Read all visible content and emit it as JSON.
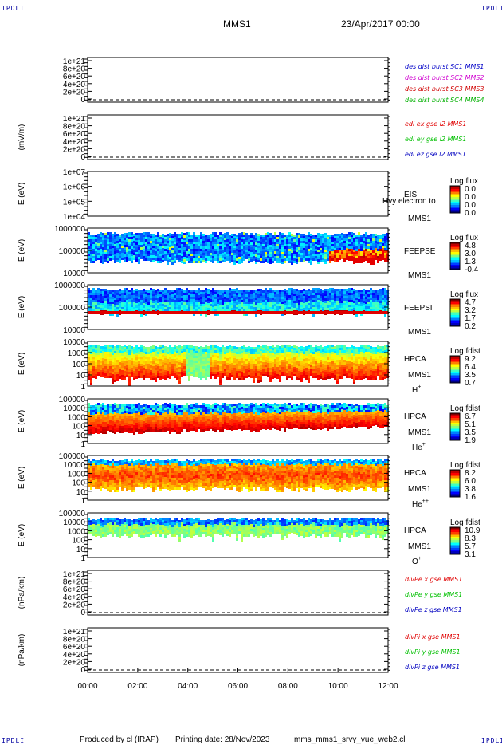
{
  "corners": {
    "tl": "IPDLI",
    "tr": "IPDLI",
    "bl": "IPDLI",
    "br": "IPDLI"
  },
  "header": {
    "mission": "MMS1",
    "date": "23/Apr/2017 00:00"
  },
  "footer": {
    "produced": "Produced by cl (IRAP)",
    "printing": "Printing date: 28/Nov/2023",
    "script": "mms_mms1_srvy_vue_web2.cl"
  },
  "colors": {
    "ax1": "#0000c8",
    "ax2": "#d000d0",
    "ax3": "#d00000",
    "ax4": "#00b000",
    "red": "#e00000",
    "green": "#00c000",
    "blue": "#0000c0"
  },
  "chart_data": [
    {
      "type": "line",
      "ylabel": "",
      "yticks": [
        "1e+21",
        "8e+20",
        "6e+20",
        "4e+20",
        "2e+20",
        "0"
      ],
      "legend": [
        "des dist burst SC1 MMS1",
        "des dist burst SC2 MMS2",
        "des dist burst SC3 MMS3",
        "des dist burst SC4 MMS4"
      ],
      "legend_colors": [
        "ax1",
        "ax2",
        "ax3",
        "ax4"
      ],
      "dashed_zero": true,
      "series": []
    },
    {
      "type": "line",
      "ylabel": "(mV/m)",
      "yticks": [
        "1e+21",
        "8e+20",
        "6e+20",
        "4e+20",
        "2e+20",
        "0"
      ],
      "legend": [
        "edi ex gse l2 MMS1",
        "edi ey gse l2 MMS1",
        "edi ez gse l2 MMS1"
      ],
      "legend_colors": [
        "red",
        "green",
        "blue"
      ],
      "dashed_zero": true,
      "series": []
    },
    {
      "type": "heatmap",
      "ylabel": "E (eV)",
      "yticks": [
        "1e+07",
        "1e+06",
        "1e+05",
        "1e+04"
      ],
      "right_label": "EIS",
      "sc_label": "MMS1",
      "overflow_label": "Hvy electron to",
      "colorbar": {
        "title": "Log flux",
        "ticks": [
          "0.0",
          "0.0",
          "0.0",
          "0.0"
        ]
      },
      "profile": null
    },
    {
      "type": "heatmap",
      "ylabel": "E (eV)",
      "yticks": [
        "1000000",
        "100000",
        "10000"
      ],
      "right_label": "FEEPSE",
      "sc_label": "MMS1",
      "colorbar": {
        "title": "Log flux",
        "ticks": [
          "4.8",
          "3.0",
          "1.3",
          "-0.4"
        ]
      },
      "profile": "feepse"
    },
    {
      "type": "heatmap",
      "ylabel": "E (eV)",
      "yticks": [
        "1000000",
        "100000",
        "10000"
      ],
      "right_label": "FEEPSI",
      "sc_label": "MMS1",
      "colorbar": {
        "title": "Log flux",
        "ticks": [
          "4.7",
          "3.2",
          "1.7",
          "0.2"
        ]
      },
      "profile": "feepsi"
    },
    {
      "type": "heatmap",
      "ylabel": "E (eV)",
      "yticks": [
        "10000",
        "1000",
        "100",
        "10",
        "1"
      ],
      "right_label": "HPCA",
      "sc_label": "MMS1",
      "species": "H",
      "species_sup": "+",
      "colorbar": {
        "title": "Log fdist",
        "ticks": [
          "9.2",
          "6.4",
          "3.5",
          "0.7"
        ]
      },
      "profile": "hplus"
    },
    {
      "type": "heatmap",
      "ylabel": "E (eV)",
      "yticks": [
        "100000",
        "10000",
        "1000",
        "100",
        "10",
        "1"
      ],
      "right_label": "HPCA",
      "sc_label": "MMS1",
      "species": "He",
      "species_sup": "+",
      "colorbar": {
        "title": "Log fdist",
        "ticks": [
          "6.7",
          "5.1",
          "3.5",
          "1.9"
        ]
      },
      "profile": "heplus"
    },
    {
      "type": "heatmap",
      "ylabel": "E (eV)",
      "yticks": [
        "100000",
        "10000",
        "1000",
        "100",
        "10",
        "1"
      ],
      "right_label": "HPCA",
      "sc_label": "MMS1",
      "species": "He",
      "species_sup": "++",
      "colorbar": {
        "title": "Log fdist",
        "ticks": [
          "8.2",
          "6.0",
          "3.8",
          "1.6"
        ]
      },
      "profile": "hepp"
    },
    {
      "type": "heatmap",
      "ylabel": "E (eV)",
      "yticks": [
        "100000",
        "10000",
        "1000",
        "100",
        "10",
        "1"
      ],
      "right_label": "HPCA",
      "sc_label": "MMS1",
      "species": "O",
      "species_sup": "+",
      "colorbar": {
        "title": "Log fdist",
        "ticks": [
          "10.9",
          "8.3",
          "5.7",
          "3.1"
        ]
      },
      "profile": "oplus"
    },
    {
      "type": "line",
      "ylabel": "(nPa/km)",
      "yticks": [
        "1e+21",
        "8e+20",
        "6e+20",
        "4e+20",
        "2e+20",
        "0"
      ],
      "legend": [
        "divPe x gse MMS1",
        "divPe y gse MMS1",
        "divPe z gse MMS1"
      ],
      "legend_colors": [
        "red",
        "green",
        "blue"
      ],
      "dashed_zero": true,
      "series": []
    },
    {
      "type": "line",
      "ylabel": "(nPa/km)",
      "yticks": [
        "1e+21",
        "8e+20",
        "6e+20",
        "4e+20",
        "2e+20",
        "0"
      ],
      "legend": [
        "divPi x gse MMS1",
        "divPi y gse MMS1",
        "divPi z gse MMS1"
      ],
      "legend_colors": [
        "red",
        "green",
        "blue"
      ],
      "dashed_zero": true,
      "series": []
    }
  ],
  "xaxis": {
    "ticks": [
      "00:00",
      "02:00",
      "04:00",
      "06:00",
      "08:00",
      "10:00",
      "12:00"
    ]
  }
}
